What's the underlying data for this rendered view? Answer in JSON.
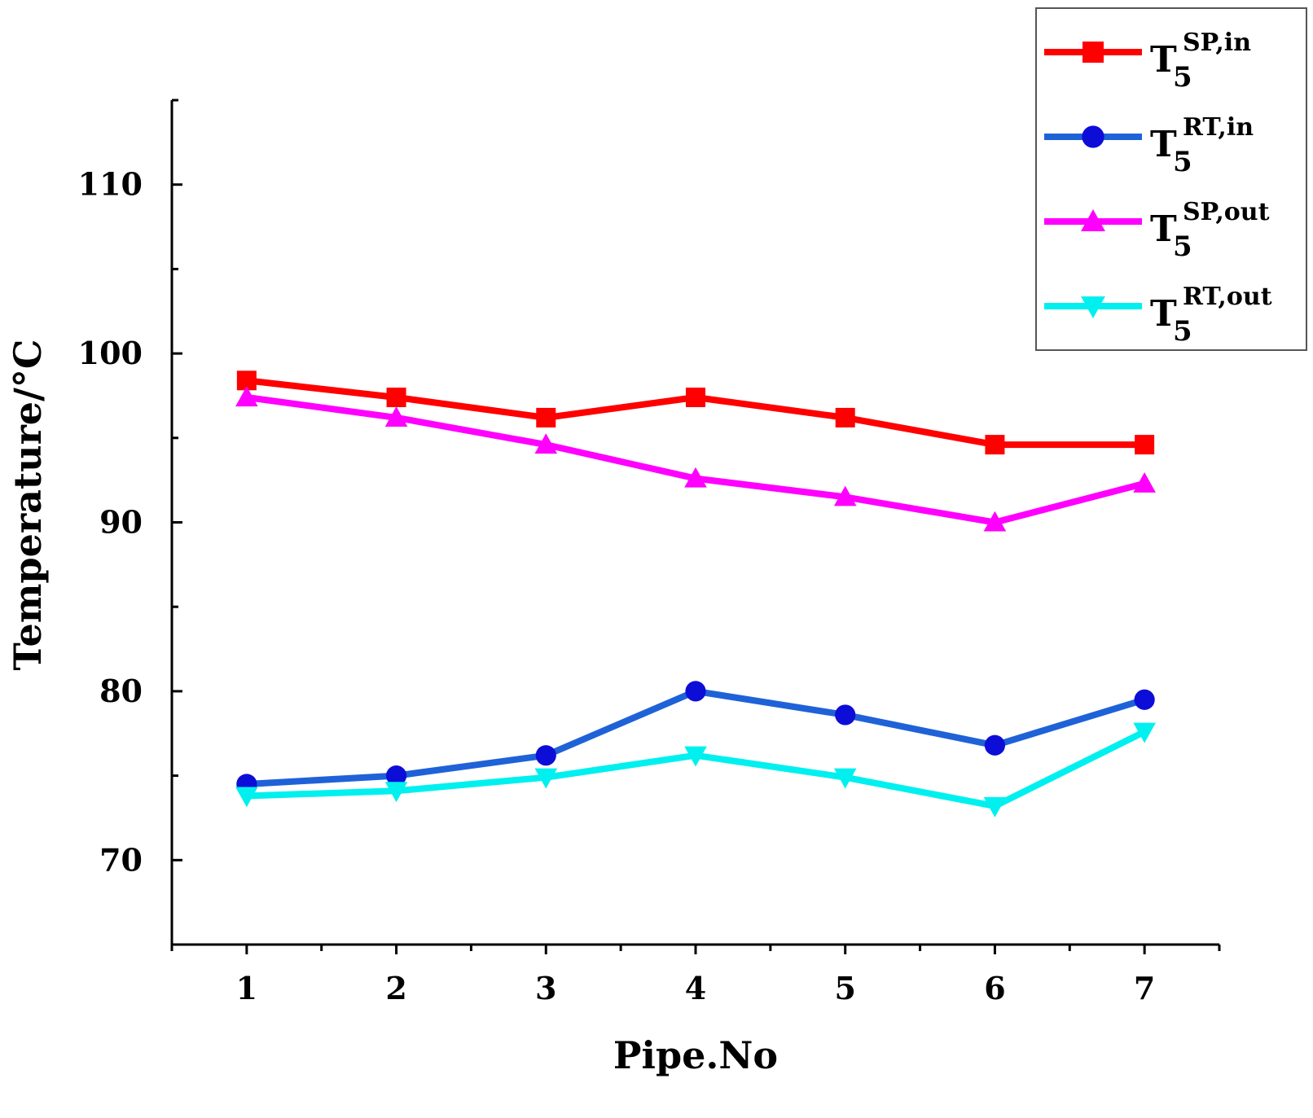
{
  "chart_data": {
    "type": "line",
    "xlabel": "Pipe.No",
    "ylabel": "Temperature/°C",
    "x": [
      1,
      2,
      3,
      4,
      5,
      6,
      7
    ],
    "x_tick_labels": [
      "1",
      "2",
      "3",
      "4",
      "5",
      "6",
      "7"
    ],
    "xlim": [
      0.5,
      7.5
    ],
    "ylim": [
      65,
      115
    ],
    "y_ticks": [
      70,
      80,
      90,
      100,
      110
    ],
    "y_tick_labels": [
      "70",
      "80",
      "90",
      "100",
      "110"
    ],
    "grid": false,
    "legend_position": "top-right",
    "series": [
      {
        "key": "sp_in",
        "base": "T",
        "sub": "5",
        "sup": "SP,in",
        "color": "#ff0000",
        "marker": "square",
        "values": [
          98.4,
          97.4,
          96.2,
          97.4,
          96.2,
          94.6,
          94.6
        ]
      },
      {
        "key": "rt_in",
        "base": "T",
        "sub": "5",
        "sup": "RT,in",
        "color": "#1f62d8",
        "marker": "circle",
        "marker_color": "#0d0dd8",
        "values": [
          74.5,
          75.0,
          76.2,
          80.0,
          78.6,
          76.8,
          79.5
        ]
      },
      {
        "key": "sp_out",
        "base": "T",
        "sub": "5",
        "sup": "SP,out",
        "color": "#ff00ff",
        "marker": "triangle-up",
        "values": [
          97.4,
          96.2,
          94.6,
          92.6,
          91.5,
          90.0,
          92.3
        ]
      },
      {
        "key": "rt_out",
        "base": "T",
        "sub": "5",
        "sup": "RT,out",
        "color": "#00f0f0",
        "marker": "triangle-down",
        "values": [
          73.8,
          74.1,
          74.9,
          76.2,
          74.9,
          73.2,
          77.6
        ]
      }
    ]
  }
}
